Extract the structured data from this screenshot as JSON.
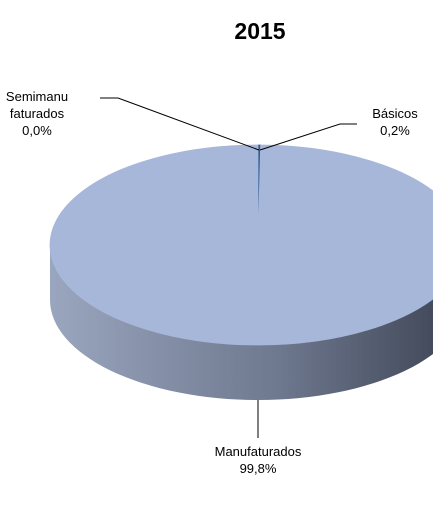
{
  "chart_data": {
    "type": "pie3d",
    "title": "2015",
    "categories": [
      "Básicos",
      "Semimanufaturados",
      "Manufaturados"
    ],
    "values": [
      0.2,
      0.0,
      99.8
    ],
    "value_labels": [
      "0,2%",
      "0,0%",
      "99,8%"
    ],
    "colors": [
      "#2f5c8e",
      "#c0504d",
      "#a7b7d9"
    ]
  }
}
